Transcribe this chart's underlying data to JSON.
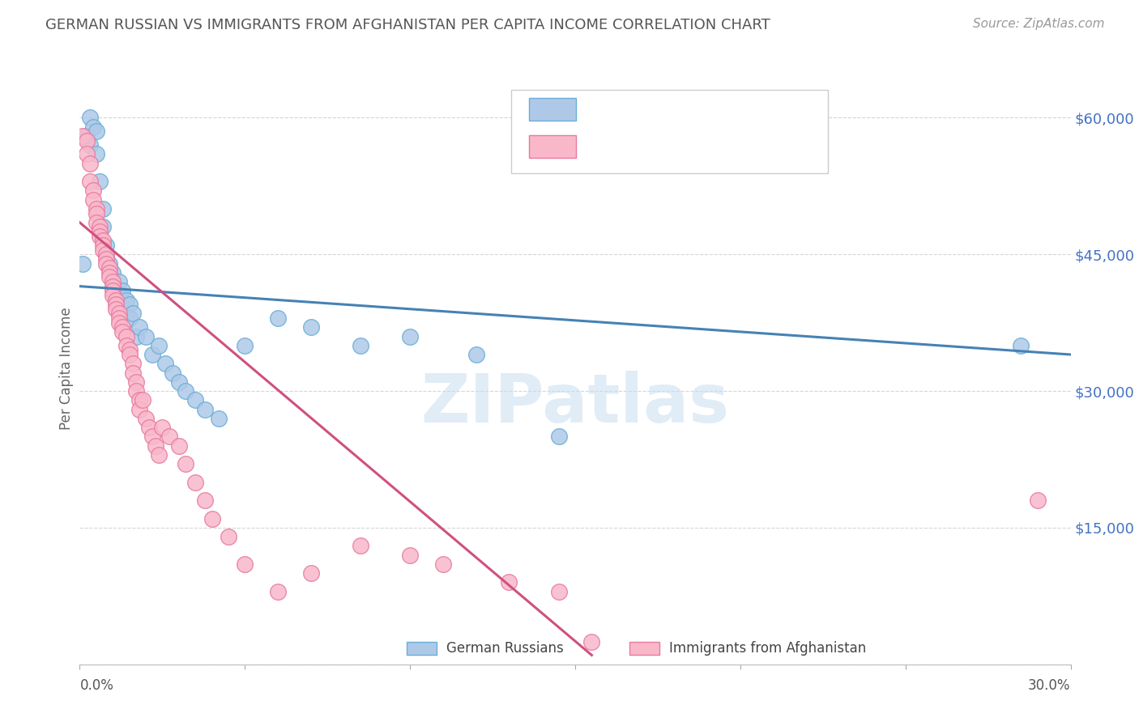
{
  "title": "GERMAN RUSSIAN VS IMMIGRANTS FROM AFGHANISTAN PER CAPITA INCOME CORRELATION CHART",
  "source": "Source: ZipAtlas.com",
  "ylabel": "Per Capita Income",
  "xlim": [
    0.0,
    0.3
  ],
  "ylim": [
    0,
    65000
  ],
  "watermark": "ZIPatlas",
  "blue_color": "#aec9e8",
  "blue_edge_color": "#6baed6",
  "pink_color": "#f9b8ca",
  "pink_edge_color": "#e87aa0",
  "blue_line_color": "#4682b4",
  "pink_line_color": "#d05080",
  "title_color": "#555555",
  "source_color": "#999999",
  "axis_label_color": "#4472c4",
  "yticks": [
    0,
    15000,
    30000,
    45000,
    60000
  ],
  "ytick_labels": [
    "",
    "$15,000",
    "$30,000",
    "$45,000",
    "$60,000"
  ],
  "blue_line_x": [
    0.0,
    0.3
  ],
  "blue_line_y": [
    41500,
    34000
  ],
  "pink_line_x": [
    0.0,
    0.155
  ],
  "pink_line_y": [
    48500,
    1000
  ],
  "blue_scatter_x": [
    0.001,
    0.002,
    0.003,
    0.003,
    0.004,
    0.005,
    0.005,
    0.006,
    0.007,
    0.007,
    0.008,
    0.008,
    0.009,
    0.01,
    0.01,
    0.011,
    0.012,
    0.012,
    0.013,
    0.014,
    0.015,
    0.015,
    0.016,
    0.017,
    0.018,
    0.02,
    0.022,
    0.024,
    0.026,
    0.028,
    0.03,
    0.032,
    0.035,
    0.038,
    0.042,
    0.05,
    0.06,
    0.07,
    0.085,
    0.1,
    0.12,
    0.145,
    0.285
  ],
  "blue_scatter_y": [
    44000,
    58000,
    60000,
    57000,
    59000,
    58500,
    56000,
    53000,
    50000,
    48000,
    46000,
    45000,
    44000,
    43000,
    42000,
    41000,
    40500,
    42000,
    41000,
    40000,
    39500,
    38000,
    38500,
    36000,
    37000,
    36000,
    34000,
    35000,
    33000,
    32000,
    31000,
    30000,
    29000,
    28000,
    27000,
    35000,
    38000,
    37000,
    35000,
    36000,
    34000,
    25000,
    35000
  ],
  "pink_scatter_x": [
    0.001,
    0.002,
    0.002,
    0.003,
    0.003,
    0.004,
    0.004,
    0.005,
    0.005,
    0.005,
    0.006,
    0.006,
    0.006,
    0.007,
    0.007,
    0.007,
    0.008,
    0.008,
    0.008,
    0.009,
    0.009,
    0.009,
    0.01,
    0.01,
    0.01,
    0.01,
    0.011,
    0.011,
    0.011,
    0.012,
    0.012,
    0.012,
    0.013,
    0.013,
    0.014,
    0.014,
    0.015,
    0.015,
    0.016,
    0.016,
    0.017,
    0.017,
    0.018,
    0.018,
    0.019,
    0.02,
    0.021,
    0.022,
    0.023,
    0.024,
    0.025,
    0.027,
    0.03,
    0.032,
    0.035,
    0.038,
    0.04,
    0.045,
    0.05,
    0.06,
    0.07,
    0.085,
    0.1,
    0.11,
    0.13,
    0.145,
    0.155,
    0.29
  ],
  "pink_scatter_y": [
    58000,
    57500,
    56000,
    55000,
    53000,
    52000,
    51000,
    50000,
    49500,
    48500,
    48000,
    47500,
    47000,
    46500,
    46000,
    45500,
    45000,
    44500,
    44000,
    43500,
    43000,
    42500,
    42000,
    41500,
    41000,
    40500,
    40000,
    39500,
    39000,
    38500,
    38000,
    37500,
    37000,
    36500,
    36000,
    35000,
    34500,
    34000,
    33000,
    32000,
    31000,
    30000,
    29000,
    28000,
    29000,
    27000,
    26000,
    25000,
    24000,
    23000,
    26000,
    25000,
    24000,
    22000,
    20000,
    18000,
    16000,
    14000,
    11000,
    8000,
    10000,
    13000,
    12000,
    11000,
    9000,
    8000,
    2500,
    18000
  ]
}
